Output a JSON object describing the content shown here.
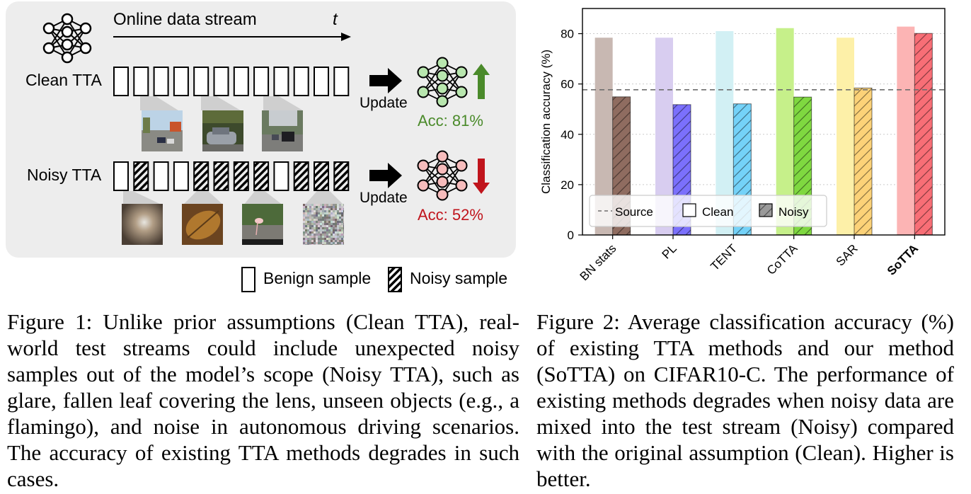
{
  "figure1": {
    "stream_label": "Online data stream",
    "time_label": "t",
    "clean": {
      "row_label": "Clean TTA",
      "update_label": "Update",
      "acc_label": "Acc: 81%",
      "color": "#4a8a2a",
      "samples": [
        "benign",
        "benign",
        "benign",
        "benign",
        "benign",
        "benign",
        "benign",
        "benign",
        "benign",
        "benign",
        "benign",
        "benign"
      ]
    },
    "noisy": {
      "row_label": "Noisy TTA",
      "update_label": "Update",
      "acc_label": "Acc: 52%",
      "color": "#c0141c",
      "samples": [
        "benign",
        "noisy",
        "benign",
        "benign",
        "noisy",
        "noisy",
        "noisy",
        "noisy",
        "benign",
        "noisy",
        "noisy",
        "noisy"
      ]
    },
    "legend": {
      "benign": "Benign sample",
      "noisy": "Noisy sample"
    },
    "caption": "Figure 1: Unlike prior assumptions (Clean TTA), real-world test streams could include unexpected noisy samples out of the model’s scope (Noisy TTA), such as glare, fallen leaf covering the lens, unseen objects (e.g., a flamingo), and noise in autonomous driving scenarios. The accuracy of existing TTA methods degrades in such cases."
  },
  "figure2": {
    "caption": "Figure 2: Average classification accuracy (%) of existing TTA methods and our method (SoTTA) on CIFAR10-C. The performance of existing methods degrades when noisy data are mixed into the test stream (Noisy) compared with the original assumption (Clean). Higher is better.",
    "legend": {
      "source": "Source",
      "clean": "Clean",
      "noisy": "Noisy"
    }
  },
  "chart_data": {
    "type": "bar",
    "ylabel": "Classification accuracy (%)",
    "xlabel": "",
    "ylim": [
      0,
      90
    ],
    "yticks": [
      0,
      20,
      40,
      60,
      80
    ],
    "grid": "horizontal dotted",
    "legend_position": "bottom",
    "categories": [
      "BN stats",
      "PL",
      "TENT",
      "CoTTA",
      "SAR",
      "SoTTA"
    ],
    "bold_category": "SoTTA",
    "series": [
      {
        "name": "Clean",
        "values": [
          78.4,
          78.4,
          81.0,
          82.2,
          78.4,
          82.8
        ]
      },
      {
        "name": "Noisy",
        "values": [
          54.9,
          51.8,
          52.1,
          54.8,
          58.4,
          80.1
        ]
      }
    ],
    "reference_line": {
      "name": "Source",
      "value": 57.7
    },
    "colors": {
      "clean": [
        "#c8b8b2",
        "#d8cdf0",
        "#d2f0f4",
        "#c6f08a",
        "#fdf0a8",
        "#fcb4b4"
      ],
      "noisy": [
        "#8f6c60",
        "#7b70fc",
        "#74d2f8",
        "#7fd840",
        "#fcd278",
        "#f86e76"
      ]
    }
  }
}
